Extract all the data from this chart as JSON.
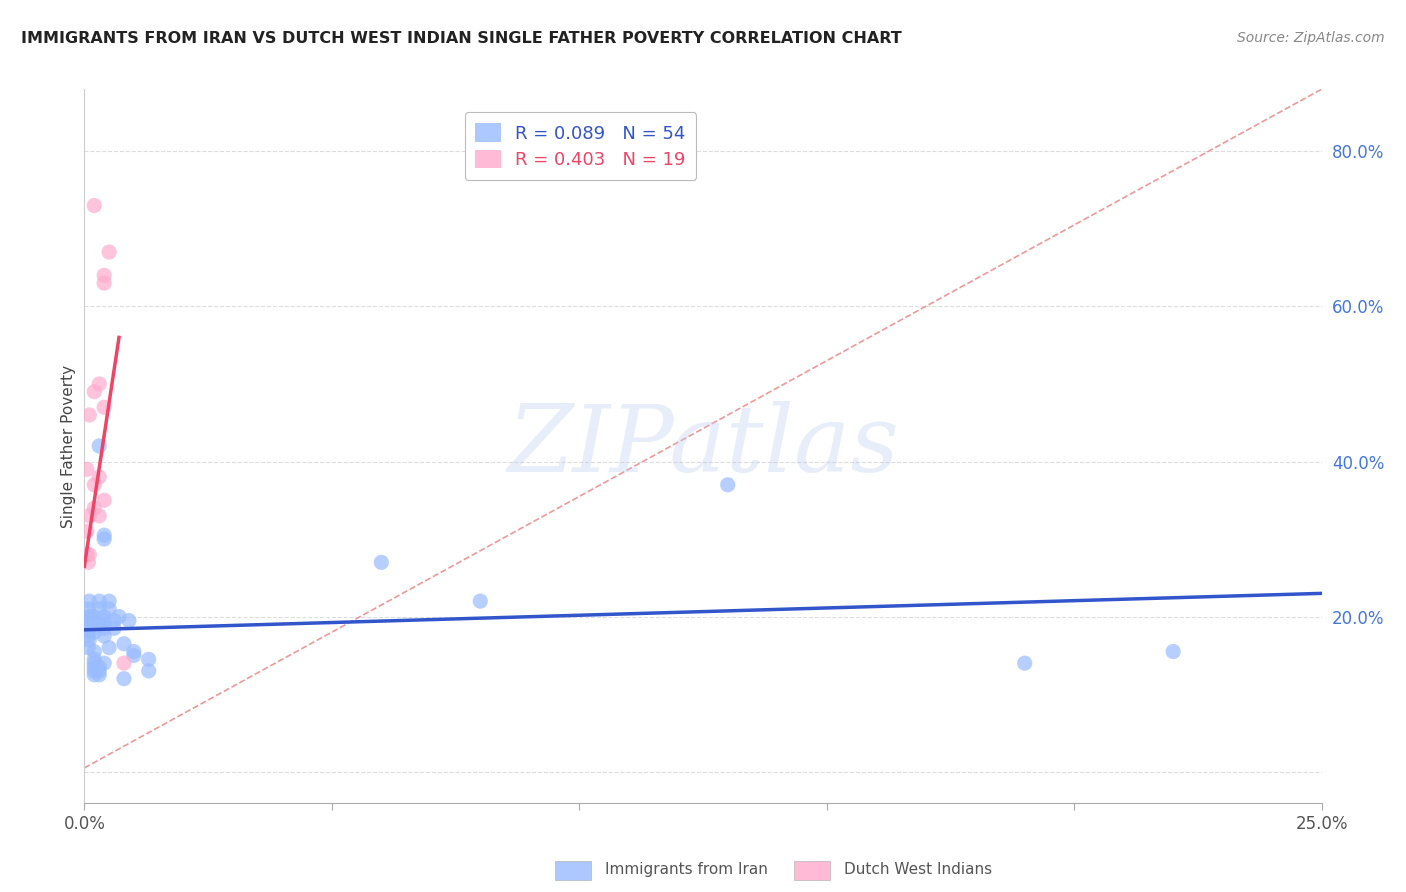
{
  "title": "IMMIGRANTS FROM IRAN VS DUTCH WEST INDIAN SINGLE FATHER POVERTY CORRELATION CHART",
  "source": "Source: ZipAtlas.com",
  "ylabel": "Single Father Poverty",
  "xlim": [
    0.0,
    0.25
  ],
  "ylim": [
    -0.04,
    0.88
  ],
  "right_yticks": [
    0.0,
    0.2,
    0.4,
    0.6,
    0.8
  ],
  "right_yticklabels": [
    "",
    "20.0%",
    "40.0%",
    "60.0%",
    "80.0%"
  ],
  "grid_color": "#dddddd",
  "background_color": "#ffffff",
  "watermark_text": "ZIPatlas",
  "blue_color": "#99bbff",
  "pink_color": "#ffaacc",
  "blue_line_color": "#3355cc",
  "pink_line_color": "#ee4466",
  "diag_line_color": "#ee9999",
  "title_color": "#222222",
  "right_tick_color": "#4477dd",
  "blue_scatter": [
    [
      0.0008,
      0.175
    ],
    [
      0.0008,
      0.16
    ],
    [
      0.0008,
      0.19
    ],
    [
      0.0008,
      0.21
    ],
    [
      0.0008,
      0.2
    ],
    [
      0.001,
      0.18
    ],
    [
      0.001,
      0.17
    ],
    [
      0.001,
      0.22
    ],
    [
      0.001,
      0.195
    ],
    [
      0.001,
      0.185
    ],
    [
      0.0015,
      0.2
    ],
    [
      0.0015,
      0.195
    ],
    [
      0.002,
      0.155
    ],
    [
      0.002,
      0.145
    ],
    [
      0.002,
      0.135
    ],
    [
      0.002,
      0.18
    ],
    [
      0.002,
      0.2
    ],
    [
      0.002,
      0.195
    ],
    [
      0.002,
      0.14
    ],
    [
      0.002,
      0.13
    ],
    [
      0.002,
      0.125
    ],
    [
      0.003,
      0.42
    ],
    [
      0.003,
      0.21
    ],
    [
      0.003,
      0.19
    ],
    [
      0.003,
      0.22
    ],
    [
      0.003,
      0.13
    ],
    [
      0.003,
      0.125
    ],
    [
      0.003,
      0.135
    ],
    [
      0.004,
      0.2
    ],
    [
      0.004,
      0.19
    ],
    [
      0.004,
      0.185
    ],
    [
      0.004,
      0.3
    ],
    [
      0.004,
      0.195
    ],
    [
      0.004,
      0.305
    ],
    [
      0.004,
      0.175
    ],
    [
      0.004,
      0.14
    ],
    [
      0.005,
      0.22
    ],
    [
      0.005,
      0.16
    ],
    [
      0.005,
      0.21
    ],
    [
      0.006,
      0.195
    ],
    [
      0.006,
      0.185
    ],
    [
      0.007,
      0.2
    ],
    [
      0.008,
      0.165
    ],
    [
      0.008,
      0.12
    ],
    [
      0.009,
      0.195
    ],
    [
      0.01,
      0.155
    ],
    [
      0.01,
      0.15
    ],
    [
      0.013,
      0.13
    ],
    [
      0.013,
      0.145
    ],
    [
      0.06,
      0.27
    ],
    [
      0.08,
      0.22
    ],
    [
      0.13,
      0.37
    ],
    [
      0.19,
      0.14
    ],
    [
      0.22,
      0.155
    ]
  ],
  "pink_scatter": [
    [
      0.0005,
      0.39
    ],
    [
      0.0005,
      0.31
    ],
    [
      0.0005,
      0.28
    ],
    [
      0.0008,
      0.27
    ],
    [
      0.001,
      0.46
    ],
    [
      0.001,
      0.33
    ],
    [
      0.001,
      0.28
    ],
    [
      0.002,
      0.49
    ],
    [
      0.002,
      0.37
    ],
    [
      0.002,
      0.34
    ],
    [
      0.003,
      0.5
    ],
    [
      0.003,
      0.38
    ],
    [
      0.003,
      0.33
    ],
    [
      0.004,
      0.47
    ],
    [
      0.004,
      0.35
    ],
    [
      0.004,
      0.64
    ],
    [
      0.004,
      0.63
    ],
    [
      0.005,
      0.67
    ],
    [
      0.008,
      0.14
    ],
    [
      0.002,
      0.73
    ]
  ],
  "blue_line_x": [
    0.0,
    0.25
  ],
  "blue_line_y": [
    0.183,
    0.23
  ],
  "pink_line_x": [
    0.0,
    0.007
  ],
  "pink_line_y": [
    0.265,
    0.56
  ],
  "diag_line_x": [
    0.0,
    0.25
  ],
  "diag_line_y": [
    0.005,
    0.88
  ]
}
